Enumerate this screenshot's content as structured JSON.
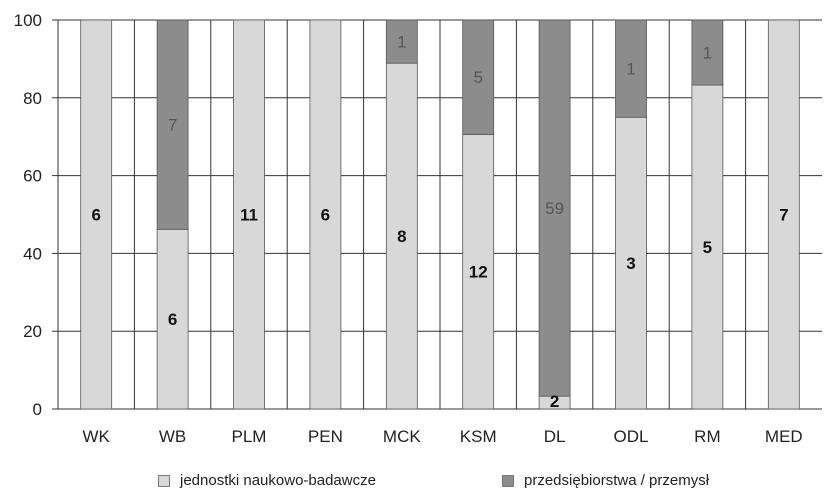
{
  "chart_data": {
    "type": "bar",
    "stacked": true,
    "categories": [
      "WK",
      "WB",
      "PLM",
      "PEN",
      "MCK",
      "KSM",
      "DL",
      "ODL",
      "RM",
      "MED"
    ],
    "y_ticks": [
      "0",
      "20",
      "40",
      "60",
      "80",
      "100"
    ],
    "ylim": [
      0,
      100
    ],
    "grid": true,
    "legend_position": "bottom",
    "series": [
      {
        "name": "jednostki naukowo-badawcze",
        "color": "#d8d8d8",
        "counts": [
          6,
          6,
          11,
          6,
          8,
          12,
          2,
          3,
          5,
          7
        ],
        "labels": [
          "6",
          "6",
          "11",
          "6",
          "8",
          "12",
          "2",
          "3",
          "5",
          "7"
        ],
        "values": [
          100,
          46.2,
          100,
          100,
          88.9,
          70.6,
          3.3,
          75,
          83.3,
          100
        ]
      },
      {
        "name": "przedsiębiorstwa / przemysł",
        "color": "#8c8c8c",
        "counts": [
          0,
          7,
          0,
          0,
          1,
          5,
          59,
          1,
          1,
          0
        ],
        "labels": [
          "",
          "7",
          "",
          "",
          "1",
          "5",
          "59",
          "1",
          "1",
          ""
        ],
        "values": [
          0,
          53.8,
          0,
          0,
          11.1,
          29.4,
          96.7,
          25,
          16.7,
          0
        ]
      }
    ]
  }
}
